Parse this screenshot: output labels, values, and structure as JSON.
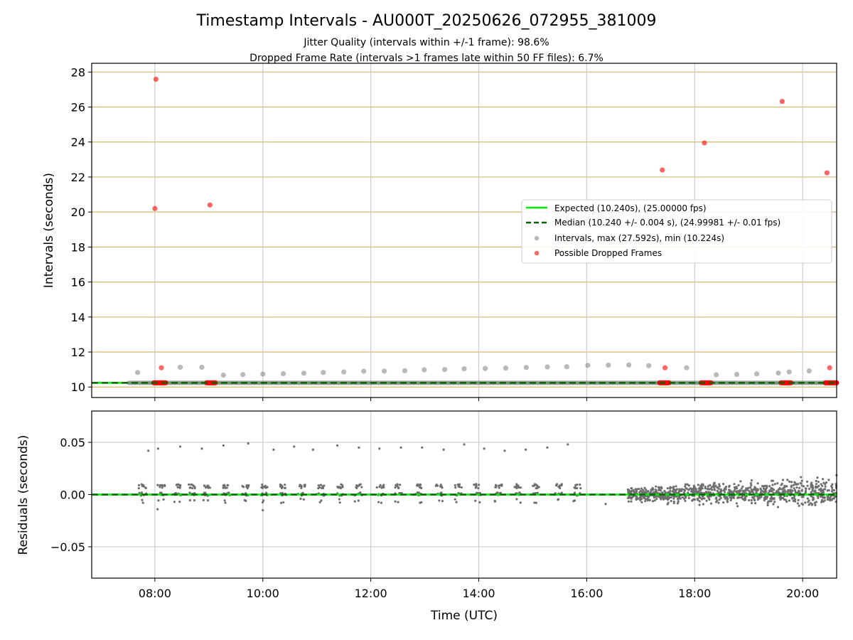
{
  "chart_data": [
    {
      "type": "scatter",
      "title": "Timestamp Intervals - AU000T_20250626_072955_381009",
      "subtitle_lines": [
        "Jitter Quality (intervals within +/-1 frame): 98.6%",
        "Dropped Frame Rate (intervals >1 frames late within 50 FF files): 6.7%"
      ],
      "xlabel": "",
      "ylabel": "Intervals (seconds)",
      "xlim": [
        6.83,
        20.63
      ],
      "ylim": [
        9.4,
        28.5
      ],
      "x_ticks": [
        8,
        10,
        12,
        14,
        16,
        18,
        20
      ],
      "y_ticks": [
        10,
        12,
        14,
        16,
        18,
        20,
        22,
        24,
        26,
        28
      ],
      "y_tick_labels": [
        "10",
        "12",
        "14",
        "16",
        "18",
        "20",
        "22",
        "24",
        "26",
        "28"
      ],
      "grid": "x-axis gray, y-axis goldenrod",
      "legend_position": "center-right",
      "colors": {
        "expected": "#00ee00",
        "median": "#006400",
        "intervals": "#808080",
        "dropped": "#ff0000",
        "ygrid": "#d4b870",
        "xgrid": "#cccccc"
      },
      "series": [
        {
          "name": "Expected (10.240s), (25.00000 fps)",
          "kind": "line",
          "y": 10.24,
          "x_range": [
            6.83,
            20.63
          ]
        },
        {
          "name": "Median (10.240 +/- 0.004 s), (24.99981 +/- 0.01 fps)",
          "kind": "dashed-line",
          "y": 10.24,
          "x_range": [
            6.83,
            20.63
          ]
        },
        {
          "name": "Intervals, max (27.592s), min (10.224s)",
          "kind": "scatter",
          "points": [
            [
              7.68,
              10.83
            ],
            [
              8.47,
              11.13
            ],
            [
              8.87,
              11.13
            ],
            [
              9.27,
              10.68
            ],
            [
              9.63,
              10.71
            ],
            [
              10.0,
              10.74
            ],
            [
              10.38,
              10.76
            ],
            [
              10.76,
              10.79
            ],
            [
              11.12,
              10.83
            ],
            [
              11.5,
              10.86
            ],
            [
              11.87,
              10.9
            ],
            [
              12.25,
              10.91
            ],
            [
              12.63,
              10.93
            ],
            [
              12.99,
              10.98
            ],
            [
              13.37,
              11.0
            ],
            [
              13.73,
              11.04
            ],
            [
              14.12,
              11.06
            ],
            [
              14.5,
              11.08
            ],
            [
              14.88,
              11.12
            ],
            [
              15.27,
              11.15
            ],
            [
              15.63,
              11.16
            ],
            [
              16.02,
              11.24
            ],
            [
              16.4,
              11.25
            ],
            [
              16.78,
              11.26
            ],
            [
              17.15,
              11.22
            ],
            [
              17.85,
              11.1
            ],
            [
              18.4,
              10.7
            ],
            [
              18.78,
              10.72
            ],
            [
              19.15,
              10.75
            ],
            [
              19.55,
              10.8
            ],
            [
              19.75,
              10.86
            ],
            [
              20.12,
              10.92
            ]
          ]
        },
        {
          "name": "Possible Dropped Frames",
          "kind": "scatter",
          "points": [
            [
              8.02,
              27.59
            ],
            [
              8.0,
              20.2
            ],
            [
              9.02,
              20.4
            ],
            [
              8.12,
              11.1
            ],
            [
              17.4,
              22.4
            ],
            [
              17.45,
              11.1
            ],
            [
              18.18,
              23.95
            ],
            [
              19.62,
              26.32
            ],
            [
              20.45,
              22.24
            ],
            [
              20.5,
              11.1
            ]
          ]
        }
      ],
      "baseline_segments": {
        "x_start": 7.52,
        "x_end": 20.63,
        "y": 10.24,
        "dropped_clusters_x": [
          [
            7.98,
            8.2
          ],
          [
            8.96,
            9.12
          ],
          [
            17.35,
            17.52
          ],
          [
            18.12,
            18.3
          ],
          [
            19.6,
            19.78
          ],
          [
            20.42,
            20.63
          ]
        ]
      }
    },
    {
      "type": "scatter",
      "xlabel": "Time (UTC)",
      "ylabel": "Residuals (seconds)",
      "xlim": [
        6.83,
        20.63
      ],
      "ylim": [
        -0.08,
        0.08
      ],
      "x_ticks": [
        8,
        10,
        12,
        14,
        16,
        18,
        20
      ],
      "x_tick_labels": [
        "08:00",
        "10:00",
        "12:00",
        "14:00",
        "16:00",
        "18:00",
        "20:00"
      ],
      "y_ticks": [
        -0.05,
        0.0,
        0.05
      ],
      "y_tick_labels": [
        "−0.05",
        "0.00",
        "0.05"
      ],
      "grid": "both gray",
      "series": [
        {
          "name": "",
          "kind": "line",
          "y": 0.0,
          "x_range": [
            6.83,
            20.63
          ]
        },
        {
          "name": "",
          "kind": "scatter",
          "outliers": [
            [
              7.88,
              0.042
            ],
            [
              8.06,
              0.044
            ],
            [
              8.47,
              0.046
            ],
            [
              8.87,
              0.044
            ],
            [
              9.27,
              0.047
            ],
            [
              9.73,
              0.049
            ],
            [
              10.2,
              0.043
            ],
            [
              10.58,
              0.046
            ],
            [
              10.93,
              0.043
            ],
            [
              11.38,
              0.047
            ],
            [
              11.78,
              0.045
            ],
            [
              12.16,
              0.044
            ],
            [
              12.56,
              0.045
            ],
            [
              12.95,
              0.045
            ],
            [
              13.35,
              0.043
            ],
            [
              13.73,
              0.048
            ],
            [
              14.1,
              0.044
            ],
            [
              14.48,
              0.042
            ],
            [
              14.87,
              0.043
            ],
            [
              15.27,
              0.045
            ],
            [
              15.65,
              0.048
            ],
            [
              10.0,
              -0.015
            ],
            [
              16.35,
              -0.009
            ],
            [
              8.05,
              -0.014
            ]
          ],
          "clusters_x": [
            7.7,
            8.05,
            8.35,
            8.6,
            8.9,
            9.25,
            9.6,
            9.95,
            10.3,
            10.65,
            11.0,
            11.35,
            11.7,
            12.1,
            12.45,
            12.8,
            13.2,
            13.55,
            13.9,
            14.3,
            14.65,
            15.0,
            15.4,
            15.75
          ],
          "dense_region_x": [
            16.75,
            20.63
          ]
        }
      ]
    }
  ]
}
